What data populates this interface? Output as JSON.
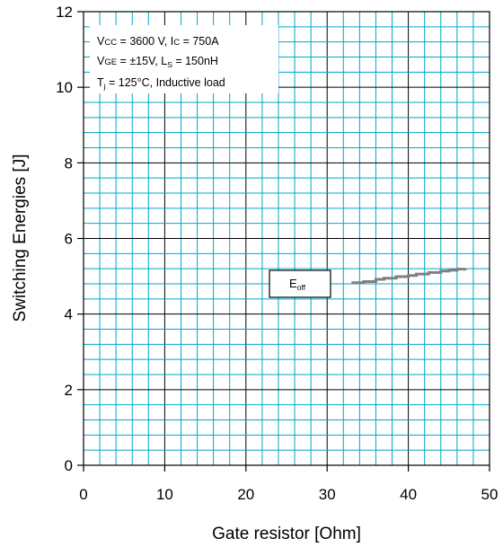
{
  "chart_data": {
    "type": "line",
    "xlabel": "Gate resistor [Ohm]",
    "ylabel": "Switching Energies [J]",
    "xlim": [
      0,
      50
    ],
    "ylim": [
      0,
      12
    ],
    "x_ticks": [
      "0",
      "10",
      "20",
      "30",
      "40",
      "50"
    ],
    "y_ticks": [
      "0",
      "2",
      "4",
      "6",
      "8",
      "10",
      "12"
    ],
    "grid": true,
    "annotation": {
      "line1": {
        "v": "V",
        "v_sub": "CC",
        "a": " = 3600 V, I",
        "i_sub": "C",
        "b": " = 750A"
      },
      "line2": {
        "v": "V",
        "v_sub": "GE",
        "a": " = ±15V, L",
        "l_sub": "S",
        "b": " = 150nH"
      },
      "line3": {
        "t": "T",
        "t_sub": "j",
        "a": " = 125°C, Inductive load"
      }
    },
    "series": [
      {
        "name": "E",
        "name_sub": "off",
        "color": "#808080",
        "x": [
          33.0,
          34.5,
          36.0,
          37.0,
          38.5,
          40.0,
          41.0,
          42.5,
          44.0,
          45.0,
          46.0,
          47.0
        ],
        "y": [
          4.83,
          4.86,
          4.92,
          4.95,
          4.99,
          5.02,
          5.06,
          5.1,
          5.14,
          5.16,
          5.19,
          5.21
        ]
      }
    ]
  }
}
